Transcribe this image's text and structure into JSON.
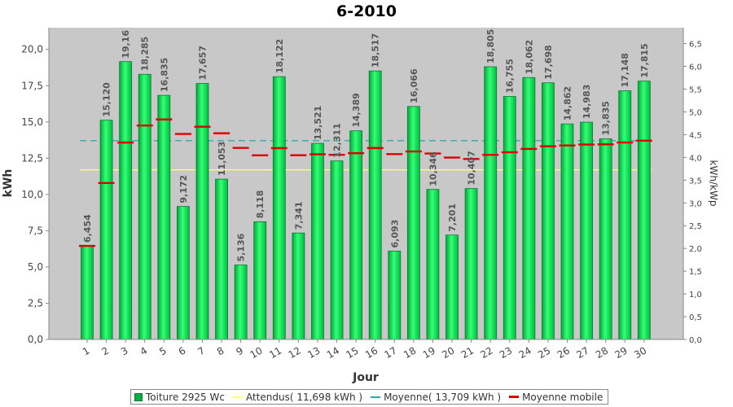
{
  "chart_data": {
    "type": "bar",
    "title": "6-2010",
    "xlabel": "Jour",
    "ylabel": "kWh",
    "ylabel_right": "kWh/kWp",
    "ylim": [
      0,
      21.5
    ],
    "ylim_right": [
      0,
      6.85
    ],
    "yticks": [
      "0,0",
      "2,5",
      "5,0",
      "7,5",
      "10,0",
      "12,5",
      "15,0",
      "17,5",
      "20,0"
    ],
    "yticks_right": [
      "0,0",
      "0,5",
      "1,0",
      "1,5",
      "2,0",
      "2,5",
      "3,0",
      "3,5",
      "4,0",
      "4,5",
      "5,0",
      "5,5",
      "6,0",
      "6,5"
    ],
    "categories": [
      "1",
      "2",
      "3",
      "4",
      "5",
      "6",
      "7",
      "8",
      "9",
      "10",
      "11",
      "12",
      "13",
      "14",
      "15",
      "16",
      "17",
      "18",
      "19",
      "20",
      "21",
      "22",
      "23",
      "24",
      "25",
      "26",
      "27",
      "28",
      "29",
      "30"
    ],
    "series": [
      {
        "name": "Toiture 2925 Wc",
        "values": [
          6.454,
          15.12,
          19.16,
          18.285,
          16.835,
          9.172,
          17.657,
          11.053,
          5.136,
          8.118,
          18.122,
          7.341,
          13.521,
          12.311,
          14.389,
          18.517,
          6.093,
          16.066,
          10.346,
          7.201,
          10.407,
          18.805,
          16.755,
          18.062,
          17.698,
          14.862,
          14.983,
          13.835,
          17.148,
          17.815
        ],
        "labels": [
          "6,454",
          "15,120",
          "19,16",
          "18,285",
          "16,835",
          "9,172",
          "17,657",
          "11,053",
          "5,136",
          "8,118",
          "18,122",
          "7,341",
          "13,521",
          "12,311",
          "14,389",
          "18,517",
          "6,093",
          "16,066",
          "10,346",
          "7,201",
          "10,407",
          "18,805",
          "16,755",
          "18,062",
          "17,698",
          "14,862",
          "14,983",
          "13,835",
          "17,148",
          "17,815"
        ],
        "color": "#00cc44"
      },
      {
        "name": "Moyenne mobile",
        "values": [
          6.454,
          10.787,
          13.578,
          14.755,
          15.171,
          14.171,
          14.669,
          14.217,
          13.208,
          12.699,
          13.192,
          12.704,
          12.767,
          12.734,
          12.844,
          13.199,
          12.781,
          12.963,
          12.825,
          12.544,
          12.442,
          12.731,
          12.906,
          13.138,
          13.32,
          13.379,
          13.441,
          13.455,
          13.582,
          13.709
        ],
        "color": "#dd0000"
      }
    ],
    "reference_lines": [
      {
        "name": "Attendus( 11,698 kWh )",
        "value": 11.698,
        "color": "#ffff88"
      },
      {
        "name": "Moyenne( 13,709 kWh )",
        "value": 13.709,
        "color": "#33aaaa"
      }
    ],
    "legend_position": "bottom",
    "grid": false,
    "colors": {
      "plot_background": "#c8c8c8",
      "bar_fill": "#00cc44",
      "bar_highlight": "#66ff99",
      "bar_edge": "#0a7a36"
    }
  }
}
